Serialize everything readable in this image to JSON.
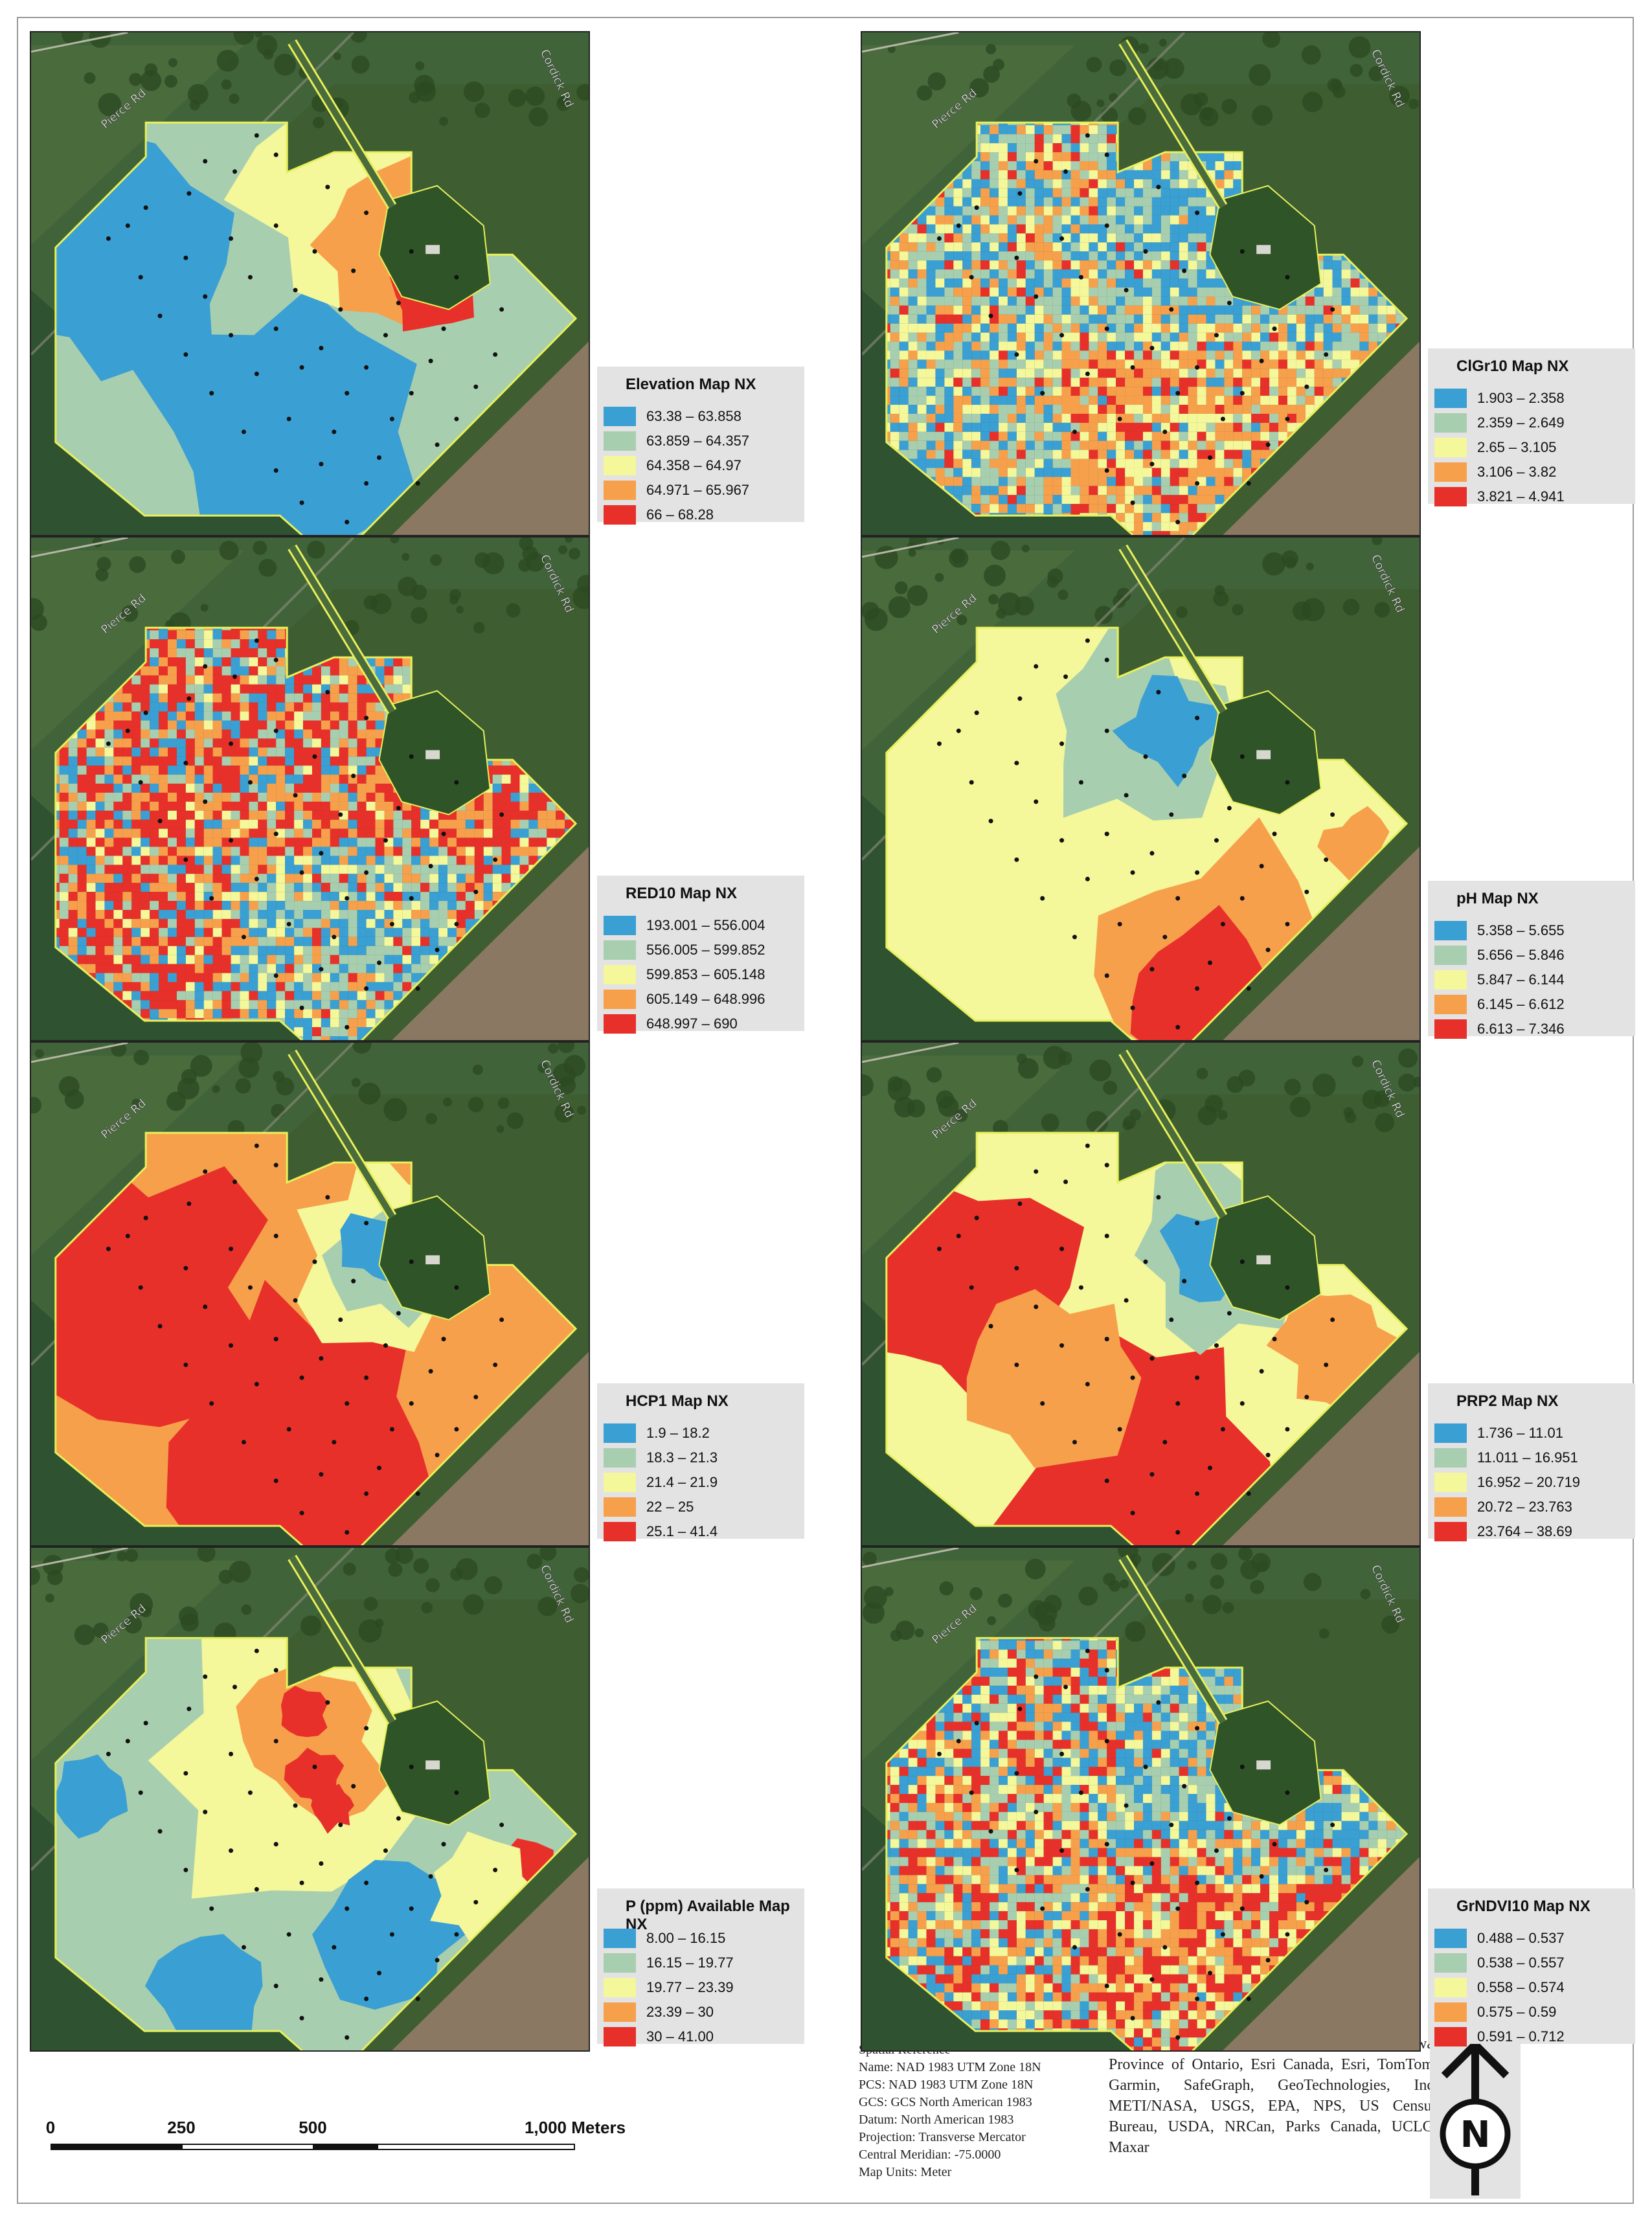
{
  "maps": [
    {
      "id": "elevation",
      "title": "Elevation Map NX",
      "variant": "elev",
      "classes": [
        {
          "label": "63.38 – 63.858",
          "color": "#3a9fd3"
        },
        {
          "label": "63.859 – 64.357",
          "color": "#a8ceb0"
        },
        {
          "label": "64.358 – 64.97",
          "color": "#f4f79a"
        },
        {
          "label": "64.971 – 65.967",
          "color": "#f7a04c"
        },
        {
          "label": "66 – 68.28",
          "color": "#e8302a"
        }
      ]
    },
    {
      "id": "clgr10",
      "title": "ClGr10 Map NX",
      "variant": "noise",
      "classes": [
        {
          "label": "1.903 – 2.358",
          "color": "#3a9fd3"
        },
        {
          "label": "2.359 – 2.649",
          "color": "#a8ceb0"
        },
        {
          "label": "2.65 – 3.105",
          "color": "#f4f79a"
        },
        {
          "label": "3.106 – 3.82",
          "color": "#f7a04c"
        },
        {
          "label": "3.821 – 4.941",
          "color": "#e8302a"
        }
      ]
    },
    {
      "id": "red10",
      "title": "RED10 Map NX",
      "variant": "red",
      "classes": [
        {
          "label": "193.001 – 556.004",
          "color": "#3a9fd3"
        },
        {
          "label": "556.005 – 599.852",
          "color": "#a8ceb0"
        },
        {
          "label": "599.853 – 605.148",
          "color": "#f4f79a"
        },
        {
          "label": "605.149 – 648.996",
          "color": "#f7a04c"
        },
        {
          "label": "648.997 – 690",
          "color": "#e8302a"
        }
      ]
    },
    {
      "id": "ph",
      "title": "pH Map NX",
      "variant": "ph",
      "classes": [
        {
          "label": "5.358 – 5.655",
          "color": "#3a9fd3"
        },
        {
          "label": "5.656 – 5.846",
          "color": "#a8ceb0"
        },
        {
          "label": "5.847 – 6.144",
          "color": "#f4f79a"
        },
        {
          "label": "6.145 – 6.612",
          "color": "#f7a04c"
        },
        {
          "label": "6.613 – 7.346",
          "color": "#e8302a"
        }
      ]
    },
    {
      "id": "hcp1",
      "title": "HCP1 Map NX",
      "variant": "hcp",
      "classes": [
        {
          "label": "1.9 – 18.2",
          "color": "#3a9fd3"
        },
        {
          "label": "18.3 – 21.3",
          "color": "#a8ceb0"
        },
        {
          "label": "21.4 – 21.9",
          "color": "#f4f79a"
        },
        {
          "label": "22 – 25",
          "color": "#f7a04c"
        },
        {
          "label": "25.1 – 41.4",
          "color": "#e8302a"
        }
      ]
    },
    {
      "id": "prp2",
      "title": "PRP2 Map NX",
      "variant": "prp",
      "classes": [
        {
          "label": "1.736 – 11.01",
          "color": "#3a9fd3"
        },
        {
          "label": "11.011 – 16.951",
          "color": "#a8ceb0"
        },
        {
          "label": "16.952 – 20.719",
          "color": "#f4f79a"
        },
        {
          "label": "20.72 – 23.763",
          "color": "#f7a04c"
        },
        {
          "label": "23.764 – 38.69",
          "color": "#e8302a"
        }
      ]
    },
    {
      "id": "p_available",
      "title": "P (ppm) Available Map NX",
      "variant": "p",
      "classes": [
        {
          "label": "8.00 – 16.15",
          "color": "#3a9fd3"
        },
        {
          "label": "16.15 – 19.77",
          "color": "#a8ceb0"
        },
        {
          "label": "19.77 – 23.39",
          "color": "#f4f79a"
        },
        {
          "label": "23.39 – 30",
          "color": "#f7a04c"
        },
        {
          "label": "30 – 41.00",
          "color": "#e8302a"
        }
      ]
    },
    {
      "id": "grndvi10",
      "title": "GrNDVI10 Map NX",
      "variant": "ndvi",
      "classes": [
        {
          "label": "0.488 – 0.537",
          "color": "#3a9fd3"
        },
        {
          "label": "0.538 – 0.557",
          "color": "#a8ceb0"
        },
        {
          "label": "0.558 – 0.574",
          "color": "#f4f79a"
        },
        {
          "label": "0.575 – 0.59",
          "color": "#f7a04c"
        },
        {
          "label": "0.591 – 0.712",
          "color": "#e8302a"
        }
      ]
    }
  ],
  "road_labels": {
    "pierce": "Pierce Rd",
    "cordick": "Cordick Rd"
  },
  "scale_bar": {
    "ticks": [
      "0",
      "250",
      "500",
      "1,000 Meters"
    ]
  },
  "spatial_reference": [
    "Spatial Reference",
    "Name: NAD 1983 UTM Zone 18N",
    "PCS: NAD 1983 UTM Zone 18N",
    "GCS: GCS North American 1983",
    "Datum: North American 1983",
    "Projection: Transverse Mercator",
    "Central Meridian: -75.0000",
    "Map Units: Meter"
  ],
  "credits": "Esri Community Maps Contributors, City of Ottawa, Province of Ontario, Esri Canada, Esri, TomTom, Garmin, SafeGraph, GeoTechnologies, Inc, METI/NASA, USGS, EPA, NPS, US Census Bureau, USDA, NRCan, Parks Canada, UCLG, Maxar",
  "north_arrow": {
    "letter": "N"
  }
}
